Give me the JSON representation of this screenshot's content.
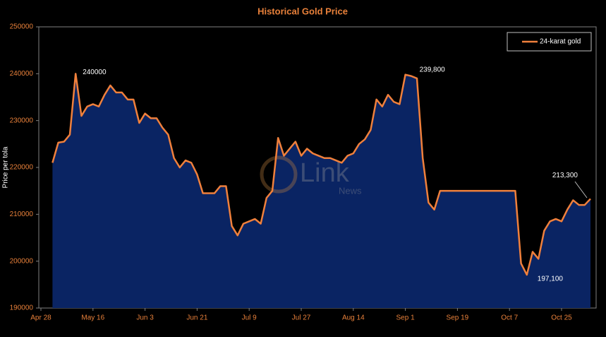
{
  "chart_data": {
    "type": "area",
    "title": "Historical Gold Price",
    "y_label": "Price per tola",
    "watermark": {
      "line1": "Link",
      "line2": "News"
    },
    "legend": "upper right",
    "categories": [
      "Apr 28",
      null,
      null,
      null,
      null,
      null,
      null,
      null,
      null,
      "May 16",
      null,
      null,
      null,
      null,
      null,
      null,
      null,
      null,
      "Jun 3",
      null,
      null,
      null,
      null,
      null,
      null,
      null,
      null,
      "Jun 21",
      null,
      null,
      null,
      null,
      null,
      null,
      null,
      null,
      "Jul 9",
      null,
      null,
      null,
      null,
      null,
      null,
      null,
      null,
      "Jul 27",
      null,
      null,
      null,
      null,
      null,
      null,
      null,
      null,
      "Aug 14",
      null,
      null,
      null,
      null,
      null,
      null,
      null,
      null,
      "Sep 1",
      null,
      null,
      null,
      null,
      null,
      null,
      null,
      null,
      "Sep 19",
      null,
      null,
      null,
      null,
      null,
      null,
      null,
      null,
      "Oct 7",
      null,
      null,
      null,
      null,
      null,
      null,
      null,
      null,
      "Oct 25",
      null,
      null,
      null,
      null,
      null
    ],
    "series": [
      {
        "name": "24-karat gold",
        "color": "#f0803c",
        "fill": "#0a2463",
        "values": [
          null,
          null,
          221000,
          225300,
          225500,
          227000,
          240000,
          231000,
          233000,
          233500,
          233000,
          235500,
          237500,
          236000,
          236000,
          234500,
          234500,
          229500,
          231500,
          230500,
          230500,
          228500,
          227000,
          222000,
          220000,
          221500,
          221000,
          218500,
          214500,
          214500,
          214500,
          216000,
          216000,
          207500,
          205500,
          208000,
          208500,
          209000,
          208000,
          213500,
          215000,
          226300,
          222500,
          224000,
          225500,
          222500,
          224000,
          223000,
          222500,
          222000,
          222000,
          221500,
          221000,
          222500,
          223000,
          225000,
          226000,
          228000,
          234500,
          233000,
          235500,
          234000,
          233500,
          239800,
          239500,
          239000,
          222000,
          212500,
          211000,
          215000,
          215000,
          215000,
          215000,
          215000,
          215000,
          215000,
          215000,
          215000,
          215000,
          215000,
          215000,
          215000,
          215000,
          199500,
          197100,
          202000,
          200500,
          206500,
          208500,
          209000,
          208500,
          211000,
          213000,
          212000,
          212000,
          213300
        ],
        "value_labels": [
          null,
          null,
          null,
          null,
          null,
          null,
          "240000",
          null,
          null,
          null,
          null,
          null,
          null,
          null,
          null,
          null,
          null,
          null,
          null,
          null,
          null,
          null,
          null,
          null,
          null,
          null,
          null,
          null,
          null,
          null,
          null,
          null,
          null,
          null,
          null,
          null,
          null,
          null,
          null,
          null,
          null,
          null,
          null,
          null,
          null,
          null,
          null,
          null,
          null,
          null,
          null,
          null,
          null,
          null,
          null,
          null,
          null,
          null,
          null,
          null,
          null,
          null,
          null,
          "239,800",
          null,
          null,
          null,
          null,
          null,
          null,
          null,
          null,
          null,
          null,
          null,
          null,
          null,
          null,
          null,
          null,
          null,
          null,
          null,
          null,
          "197,100",
          null,
          null,
          null,
          null,
          null,
          null,
          null,
          null,
          null,
          null,
          "213,300"
        ]
      }
    ],
    "ylim": [
      190000,
      250000
    ],
    "yticks": [
      190000,
      200000,
      210000,
      220000,
      230000,
      240000,
      250000
    ]
  }
}
